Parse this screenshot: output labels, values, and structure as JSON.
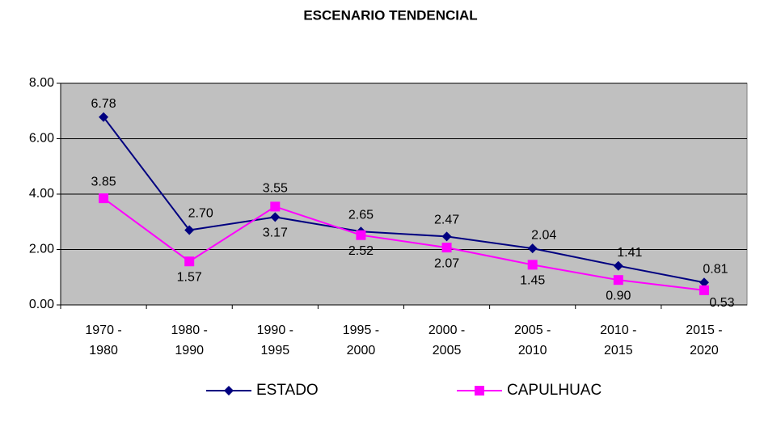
{
  "chart_data": {
    "type": "line",
    "title": "ESCENARIO TENDENCIAL",
    "categories": [
      [
        "1970 -",
        "1980"
      ],
      [
        "1980 -",
        "1990"
      ],
      [
        "1990 -",
        "1995"
      ],
      [
        "1995 -",
        "2000"
      ],
      [
        "2000 -",
        "2005"
      ],
      [
        "2005 -",
        "2010"
      ],
      [
        "2010 -",
        "2015"
      ],
      [
        "2015 -",
        "2020"
      ]
    ],
    "series": [
      {
        "name": "ESTADO",
        "color": "#000080",
        "marker": "diamond",
        "values": [
          6.78,
          2.7,
          3.17,
          2.65,
          2.47,
          2.04,
          1.41,
          0.81
        ],
        "value_labels": [
          "6.78",
          "2.70",
          "3.17",
          "2.65",
          "2.47",
          "2.04",
          "1.41",
          "0.81"
        ]
      },
      {
        "name": "CAPULHUAC",
        "color": "#FF00FF",
        "marker": "square",
        "values": [
          3.85,
          1.57,
          3.55,
          2.52,
          2.07,
          1.45,
          0.9,
          0.53
        ],
        "value_labels": [
          "3.85",
          "1.57",
          "3.55",
          "2.52",
          "2.07",
          "1.45",
          "0.90",
          "0.53"
        ]
      }
    ],
    "ylim": [
      0,
      8
    ],
    "yticks": [
      {
        "value": 0,
        "label": "0.00"
      },
      {
        "value": 2,
        "label": "2.00"
      },
      {
        "value": 4,
        "label": "4.00"
      },
      {
        "value": 6,
        "label": "6.00"
      },
      {
        "value": 8,
        "label": "8.00"
      }
    ],
    "grid": true,
    "legend": "bottom",
    "plot_background": "#C0C0C0"
  }
}
